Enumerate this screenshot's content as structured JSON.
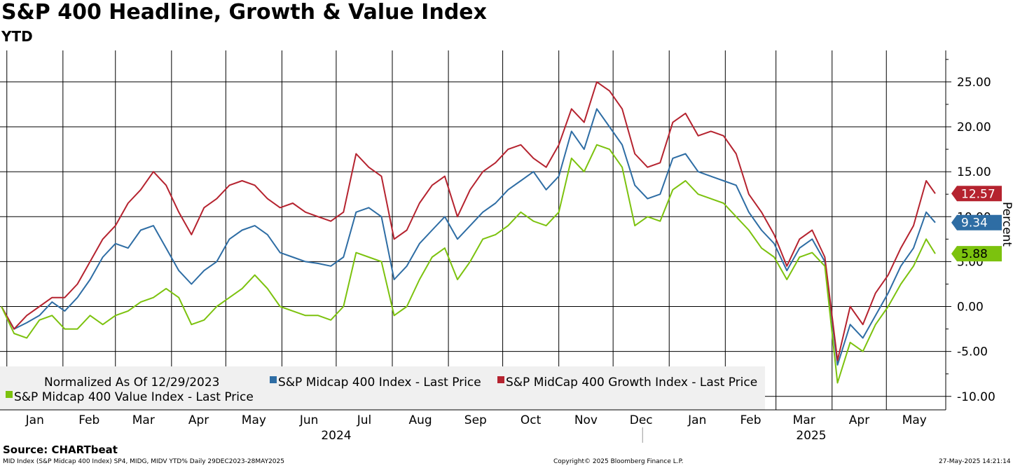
{
  "title": "S&P 400 Headline, Growth & Value Index",
  "subtitle": "YTD",
  "source": "Source: CHARTbeat",
  "footer": {
    "left": "MID Index (S&P Midcap 400 Index) SP4, MIDG, MIDV YTD%  Daily 29DEC2023-28MAY2025",
    "center": "Copyright© 2025 Bloomberg Finance L.P.",
    "right": "27-May-2025 14:21:14"
  },
  "chart_data": {
    "type": "line",
    "ylabel": "Percent",
    "ylim": [
      -11.5,
      28.5
    ],
    "yticks": [
      "25.00",
      "20.00",
      "15.00",
      "10.00",
      "5.00",
      "0.00",
      "-5.00",
      "-10.00"
    ],
    "ytick_values": [
      25,
      20,
      15,
      10,
      5,
      0,
      -5,
      -10
    ],
    "months": [
      "Jan",
      "Feb",
      "Mar",
      "Apr",
      "May",
      "Jun",
      "Jul",
      "Aug",
      "Sep",
      "Oct",
      "Nov",
      "Dec",
      "Jan",
      "Feb",
      "Mar",
      "Apr",
      "May"
    ],
    "years": [
      "2024",
      "2025"
    ],
    "legend_note": "Normalized As Of 12/29/2023",
    "grid": true,
    "legend_position": "bottom-left",
    "x": [
      "2023-12-29",
      "2024-01-05",
      "2024-01-12",
      "2024-01-19",
      "2024-01-26",
      "2024-02-02",
      "2024-02-09",
      "2024-02-16",
      "2024-02-23",
      "2024-03-01",
      "2024-03-08",
      "2024-03-15",
      "2024-03-22",
      "2024-03-29",
      "2024-04-05",
      "2024-04-12",
      "2024-04-19",
      "2024-04-26",
      "2024-05-03",
      "2024-05-10",
      "2024-05-17",
      "2024-05-24",
      "2024-05-31",
      "2024-06-07",
      "2024-06-14",
      "2024-06-21",
      "2024-06-28",
      "2024-07-05",
      "2024-07-12",
      "2024-07-19",
      "2024-07-26",
      "2024-08-02",
      "2024-08-09",
      "2024-08-16",
      "2024-08-23",
      "2024-08-30",
      "2024-09-06",
      "2024-09-13",
      "2024-09-20",
      "2024-09-27",
      "2024-10-04",
      "2024-10-11",
      "2024-10-18",
      "2024-10-25",
      "2024-11-01",
      "2024-11-08",
      "2024-11-15",
      "2024-11-22",
      "2024-11-29",
      "2024-12-06",
      "2024-12-13",
      "2024-12-20",
      "2024-12-27",
      "2025-01-03",
      "2025-01-10",
      "2025-01-17",
      "2025-01-24",
      "2025-01-31",
      "2025-02-07",
      "2025-02-14",
      "2025-02-21",
      "2025-02-28",
      "2025-03-07",
      "2025-03-14",
      "2025-03-21",
      "2025-03-28",
      "2025-04-04",
      "2025-04-11",
      "2025-04-18",
      "2025-04-25",
      "2025-05-02",
      "2025-05-09",
      "2025-05-16",
      "2025-05-23",
      "2025-05-28"
    ],
    "series": [
      {
        "name": "S&P Midcap 400 Index - Last Price",
        "color": "#2e6da4",
        "last_label": "9.34",
        "values": [
          0,
          -2.5,
          -1.8,
          -1.0,
          0.5,
          -0.5,
          1.0,
          3.0,
          5.5,
          7.0,
          6.5,
          8.5,
          9.0,
          6.5,
          4.0,
          2.5,
          4.0,
          5.0,
          7.5,
          8.5,
          9.0,
          8.0,
          6.0,
          5.5,
          5.0,
          4.8,
          4.5,
          5.5,
          10.5,
          11.0,
          10.0,
          3.0,
          4.5,
          7.0,
          8.5,
          10.0,
          7.5,
          9.0,
          10.5,
          11.5,
          13.0,
          14.0,
          15.0,
          13.0,
          14.5,
          19.5,
          17.5,
          22.0,
          20.0,
          18.0,
          13.5,
          12.0,
          12.5,
          16.5,
          17.0,
          15.0,
          14.5,
          14.0,
          13.5,
          10.5,
          8.5,
          7.0,
          4.0,
          6.5,
          7.5,
          5.0,
          -6.5,
          -2.0,
          -3.5,
          -1.0,
          1.5,
          4.5,
          6.5,
          10.5,
          9.34
        ]
      },
      {
        "name": "S&P MidCap 400 Growth Index - Last Price",
        "color": "#b5232f",
        "last_label": "12.57",
        "values": [
          0,
          -2.5,
          -1.0,
          0,
          1.0,
          1.0,
          2.5,
          5.0,
          7.5,
          9.0,
          11.5,
          13.0,
          15.0,
          13.5,
          10.5,
          8.0,
          11.0,
          12.0,
          13.5,
          14.0,
          13.5,
          12.0,
          11.0,
          11.5,
          10.5,
          10.0,
          9.5,
          10.5,
          17.0,
          15.5,
          14.5,
          7.5,
          8.5,
          11.5,
          13.5,
          14.5,
          10.0,
          13.0,
          15.0,
          16.0,
          17.5,
          18.0,
          16.5,
          15.5,
          18.0,
          22.0,
          20.5,
          25.0,
          24.0,
          22.0,
          17.0,
          15.5,
          16.0,
          20.5,
          21.5,
          19.0,
          19.5,
          19.0,
          17.0,
          12.5,
          10.5,
          8.0,
          4.5,
          7.5,
          8.5,
          5.5,
          -6.0,
          0,
          -2.0,
          1.5,
          3.5,
          6.5,
          9.0,
          14.0,
          12.57
        ]
      },
      {
        "name": "S&P Midcap 400 Value Index - Last Price",
        "color": "#7cc20e",
        "last_label": "5.88",
        "values": [
          0,
          -3.0,
          -3.5,
          -1.5,
          -1.0,
          -2.5,
          -2.5,
          -1.0,
          -2.0,
          -1.0,
          -0.5,
          0.5,
          1.0,
          2.0,
          1.0,
          -2.0,
          -1.5,
          0,
          1.0,
          2.0,
          3.5,
          2.0,
          0,
          -0.5,
          -1.0,
          -1.0,
          -1.5,
          0,
          6.0,
          5.5,
          5.0,
          -1.0,
          0,
          3.0,
          5.5,
          6.5,
          3.0,
          5.0,
          7.5,
          8.0,
          9.0,
          10.5,
          9.5,
          9.0,
          10.5,
          16.5,
          15.0,
          18.0,
          17.5,
          15.5,
          9.0,
          10.0,
          9.5,
          13.0,
          14.0,
          12.5,
          12.0,
          11.5,
          10.0,
          8.5,
          6.5,
          5.5,
          3.0,
          5.5,
          6.0,
          4.5,
          -8.5,
          -4.0,
          -5.0,
          -2.0,
          0,
          2.5,
          4.5,
          7.5,
          5.88
        ]
      }
    ]
  }
}
